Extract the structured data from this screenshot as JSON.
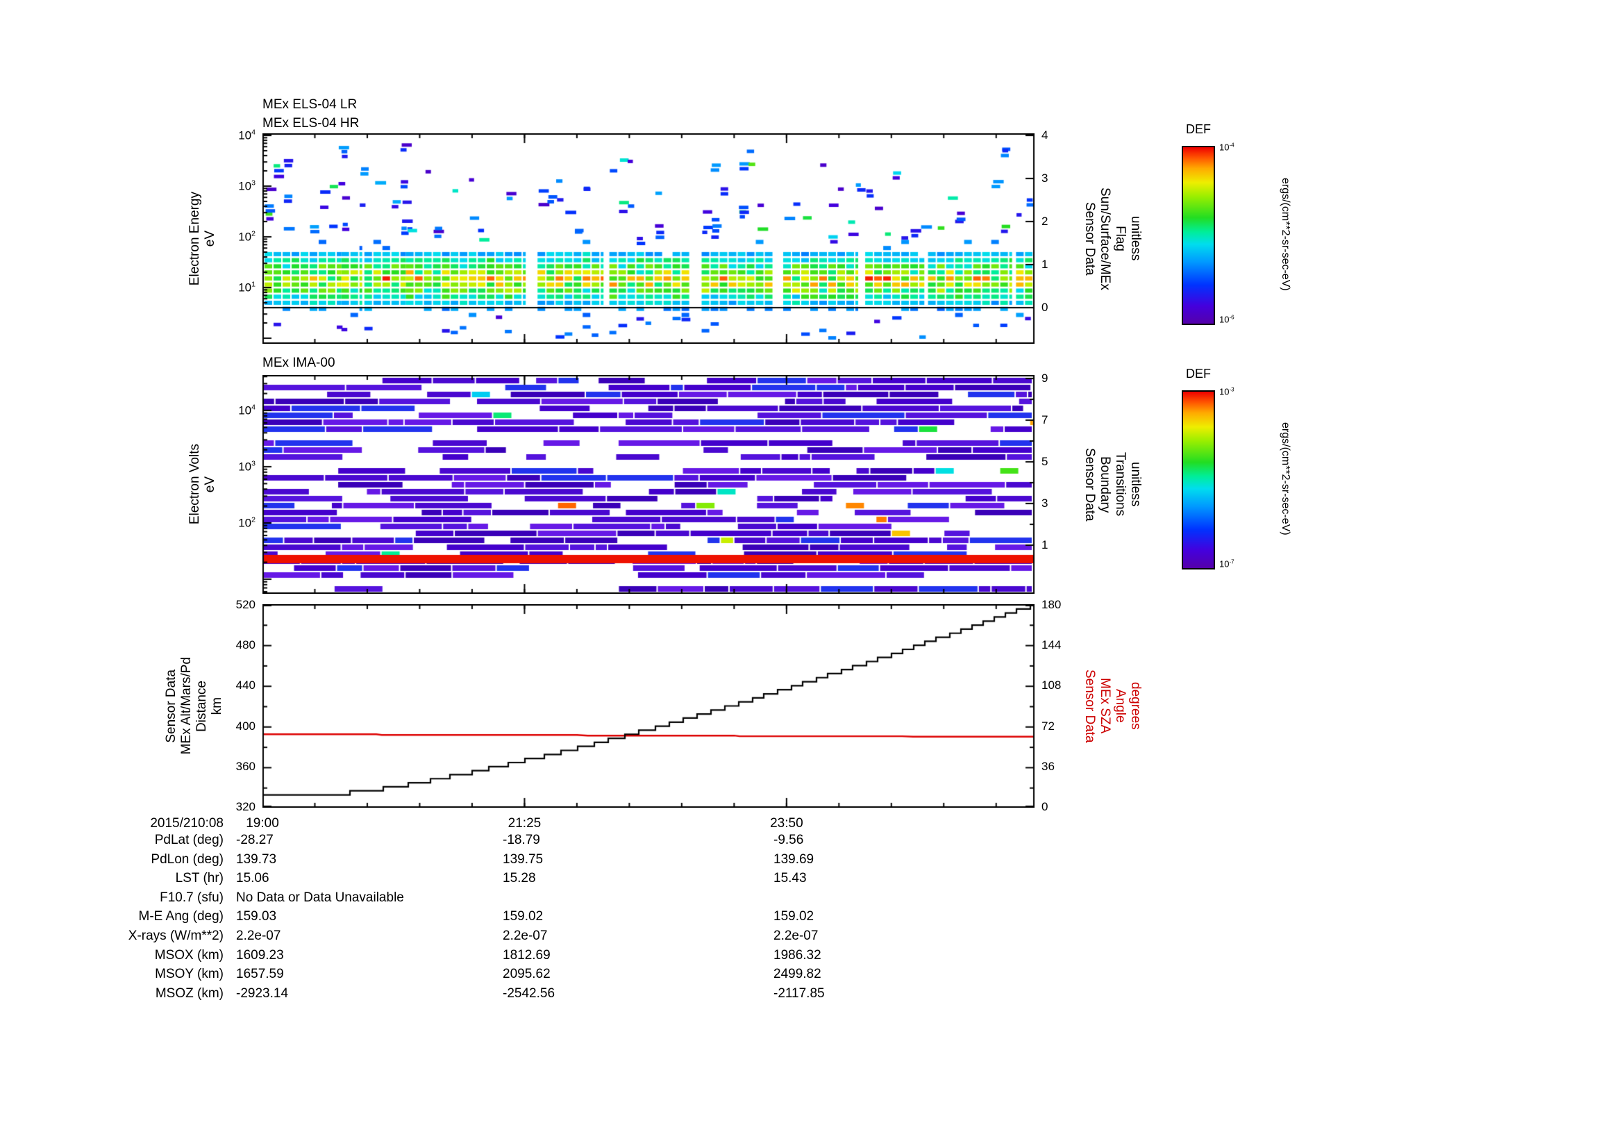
{
  "panels": {
    "els": {
      "titles": [
        "MEx ELS-04 LR",
        "MEx ELS-04 HR"
      ],
      "ylabel": [
        "Electron Energy",
        "eV"
      ],
      "yticks": [
        "10^4",
        "10^3",
        "10^2",
        "10^1"
      ],
      "right_label": [
        "Sensor Data",
        "Sun/Surface/MEx",
        "Flag",
        "unitless"
      ],
      "right_ticks": [
        "4",
        "3",
        "2",
        "1",
        "0"
      ]
    },
    "ima": {
      "title": "MEx IMA-00",
      "ylabel": [
        "Electron Volts",
        "eV"
      ],
      "yticks": [
        "10^4",
        "10^3",
        "10^2"
      ],
      "right_label": [
        "Sensor Data",
        "Boundary",
        "Transitions",
        "unitless"
      ],
      "right_ticks": [
        "9",
        "7",
        "5",
        "3",
        "1"
      ]
    },
    "line": {
      "left_label": [
        "Sensor Data",
        "MEx Alt/Mars/Pd",
        "Distance",
        "km"
      ],
      "left_ticks": [
        "520",
        "480",
        "440",
        "400",
        "360",
        "320"
      ],
      "right_label": [
        "Sensor Data",
        "MEx SZA",
        "Angle",
        "degrees"
      ],
      "right_ticks": [
        "180",
        "144",
        "108",
        "72",
        "36",
        "0"
      ],
      "right_label_color": "#cc0000"
    }
  },
  "x_axis": {
    "date_label": "2015/210:08",
    "ticks": [
      "19:00",
      "21:25",
      "23:50"
    ]
  },
  "colorbars": [
    {
      "title": "DEF",
      "max": "10^-4",
      "min": "10^-6",
      "units": "ergs/(cm**2-sr-sec-eV)"
    },
    {
      "title": "DEF",
      "max": "10^-3",
      "min": "10^-7",
      "units": "ergs/(cm**2-sr-sec-eV)"
    }
  ],
  "table": {
    "rows": [
      {
        "label": "PdLat (deg)",
        "values": [
          "-28.27",
          "-18.79",
          "-9.56"
        ]
      },
      {
        "label": "PdLon (deg)",
        "values": [
          "139.73",
          "139.75",
          "139.69"
        ]
      },
      {
        "label": "LST (hr)",
        "values": [
          "15.06",
          "15.28",
          "15.43"
        ]
      },
      {
        "label": "F10.7 (sfu)",
        "values": [
          "No Data or Data Unavailable",
          "",
          ""
        ]
      },
      {
        "label": "M-E Ang (deg)",
        "values": [
          "159.03",
          "159.02",
          "159.02"
        ]
      },
      {
        "label": "X-rays (W/m**2)",
        "values": [
          "2.2e-07",
          "2.2e-07",
          "2.2e-07"
        ]
      },
      {
        "label": "MSOX (km)",
        "values": [
          "1609.23",
          "1812.69",
          "1986.32"
        ]
      },
      {
        "label": "MSOY (km)",
        "values": [
          "1657.59",
          "2095.62",
          "2499.82"
        ]
      },
      {
        "label": "MSOZ (km)",
        "values": [
          "-2923.14",
          "-2542.56",
          "-2117.85"
        ]
      }
    ]
  },
  "colors": {
    "frame": "#000000",
    "alt_line": "#000000",
    "sza_line": "#dd0000",
    "ima_red_band": "#ee1100",
    "colormap_stops": [
      [
        0.0,
        "#5500aa"
      ],
      [
        0.1,
        "#4400dd"
      ],
      [
        0.22,
        "#0033ff"
      ],
      [
        0.35,
        "#0099ff"
      ],
      [
        0.45,
        "#00ddee"
      ],
      [
        0.52,
        "#00ee99"
      ],
      [
        0.6,
        "#22dd22"
      ],
      [
        0.72,
        "#99ee00"
      ],
      [
        0.8,
        "#eeee00"
      ],
      [
        0.88,
        "#ffaa00"
      ],
      [
        0.94,
        "#ff5500"
      ],
      [
        1.0,
        "#ee0000"
      ]
    ]
  },
  "chart_data": [
    {
      "type": "heatmap",
      "subtype": "energy-time spectrogram",
      "title": "MEx ELS-04 LR / MEx ELS-04 HR",
      "ylabel": "Electron Energy (eV)",
      "yscale": "log",
      "ylim": [
        "10^0",
        "10^4"
      ],
      "x_ticks": [
        "19:00",
        "21:25",
        "23:50"
      ],
      "colorbar": {
        "title": "DEF",
        "units": "ergs/(cm**2-sr-sec-eV)",
        "range": [
          "10^-6",
          "10^-4"
        ]
      },
      "right_axis": {
        "label": "Sensor Data Sun/Surface/MEx Flag (unitless)",
        "range": [
          0,
          4
        ],
        "overlay_line_value": 0
      },
      "features": "Dense green-yellow flux band between ~5 and ~50 eV across whole interval; sparse blue/cyan points up to 10^4 eV; periodic vertical data gaps; flat black flag line at 0.",
      "seed": 20150210
    },
    {
      "type": "heatmap",
      "subtype": "energy-time spectrogram",
      "title": "MEx IMA-00",
      "ylabel": "Electron Volts (eV)",
      "yscale": "log",
      "ylim": [
        "10^0.7",
        "10^4.6"
      ],
      "x_ticks": [
        "19:00",
        "21:25",
        "23:50"
      ],
      "colorbar": {
        "title": "DEF",
        "units": "ergs/(cm**2-sr-sec-eV)",
        "range": [
          "10^-7",
          "10^-3"
        ]
      },
      "right_axis": {
        "label": "Sensor Data Boundary Transitions (unitless)",
        "range": [
          1,
          9
        ]
      },
      "features": "Mostly violet/indigo horizontal stripes with white dropouts, occasional cyan/green/red cells, and a solid red band near the lowest energies.",
      "seed": 771
    },
    {
      "type": "line",
      "x_unit": "hours since 19:00",
      "x_span_hours": 7.12,
      "x_ticks": [
        "19:00",
        "21:25",
        "23:50"
      ],
      "x_tick_hours": [
        0,
        2.4167,
        4.8333
      ],
      "series": [
        {
          "name": "Sensor Data MEx Alt/Mars/Pd Distance (km)",
          "color": "#000000",
          "style": "steps",
          "axis": "left",
          "ylim": [
            320,
            520
          ],
          "x": [
            0,
            0.3,
            0.6,
            1,
            1.5,
            2,
            2.42,
            3,
            3.5,
            4,
            4.5,
            4.83,
            5,
            5.5,
            6,
            6.5,
            7,
            7.12
          ],
          "y": [
            332,
            332,
            332,
            336,
            345,
            356,
            366,
            381,
            395,
            410,
            426,
            437,
            443,
            460,
            478,
            497,
            516,
            520
          ]
        },
        {
          "name": "Sensor Data MEx SZA Angle (degrees)",
          "color": "#dd0000",
          "style": "steps",
          "axis": "right",
          "ylim": [
            0,
            180
          ],
          "x": [
            0,
            1.05,
            1.1,
            2.9,
            3.0,
            4.35,
            4.4,
            5.9,
            6.0,
            7.12
          ],
          "y": [
            64.8,
            64.8,
            64.2,
            64.2,
            63.6,
            63.6,
            63.0,
            63.0,
            62.6,
            62.6
          ]
        }
      ]
    }
  ]
}
